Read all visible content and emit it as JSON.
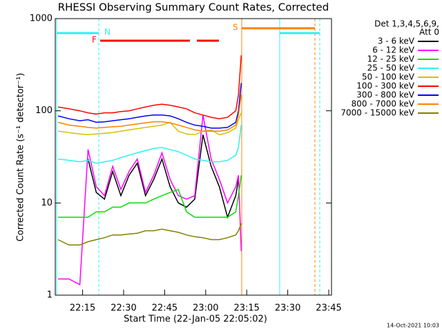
{
  "chart_data": {
    "type": "line",
    "title": "RHESSI Observing Summary Count Rates, Corrected",
    "x_label": "Start Time (22-Jan-05 22:05:02)",
    "y_label": "Corrected Count Rate (s⁻¹ detector⁻¹)",
    "legend_title": [
      "Det 1,3,4,5,6,9,",
      "Att 0"
    ],
    "annotations": [
      "N",
      "F",
      "S"
    ],
    "footer": "14-Oct-2021 10:03",
    "log_y": true,
    "ylim": [
      1,
      1000
    ],
    "yticks": [
      1,
      10,
      100,
      1000
    ],
    "xlim": [
      "22:05",
      "23:46"
    ],
    "xticks": [
      "22:15",
      "22:30",
      "22:45",
      "23:00",
      "23:15",
      "23:30",
      "23:45"
    ],
    "x": [
      "22:06",
      "22:10",
      "22:14",
      "22:17",
      "22:20",
      "22:23",
      "22:26",
      "22:29",
      "22:32",
      "22:35",
      "22:38",
      "22:41",
      "22:44",
      "22:47",
      "22:50",
      "22:53",
      "22:56",
      "22:59",
      "23:02",
      "23:05",
      "23:08",
      "23:11",
      "23:12",
      "23:13"
    ],
    "series": [
      {
        "name": "3 - 6 keV",
        "color": "#000000",
        "values": [
          null,
          null,
          null,
          30,
          13,
          11,
          22,
          12,
          20,
          27,
          12,
          18,
          30,
          15,
          10,
          9,
          11,
          55,
          25,
          15,
          7,
          12,
          18,
          null
        ]
      },
      {
        "name": "6 - 12 keV",
        "color": "#ff00ff",
        "values": [
          1.5,
          1.5,
          1.3,
          38,
          15,
          12,
          25,
          14,
          22,
          30,
          13,
          20,
          35,
          18,
          12,
          11,
          12,
          90,
          30,
          18,
          10,
          15,
          20,
          3
        ]
      },
      {
        "name": "12 - 25 keV",
        "color": "#00e000",
        "values": [
          7,
          7,
          7,
          7,
          8,
          8,
          9,
          9,
          10,
          10,
          10,
          11,
          12,
          13,
          14,
          8,
          7,
          7,
          7,
          7,
          7,
          8,
          12,
          20
        ]
      },
      {
        "name": "25 - 50 keV",
        "color": "#30f0f0",
        "values": [
          30,
          29,
          28,
          29,
          27,
          28,
          29,
          31,
          33,
          35,
          37,
          39,
          40,
          38,
          36,
          33,
          30,
          29,
          28,
          28,
          29,
          33,
          40,
          70
        ]
      },
      {
        "name": "50 - 100 keV",
        "color": "#d4c000",
        "values": [
          60,
          58,
          56,
          55,
          56,
          57,
          58,
          60,
          62,
          64,
          66,
          68,
          70,
          75,
          60,
          56,
          55,
          60,
          62,
          55,
          58,
          65,
          80,
          95
        ]
      },
      {
        "name": "100 - 300 keV",
        "color": "#ff0000",
        "values": [
          110,
          105,
          100,
          95,
          92,
          95,
          95,
          98,
          100,
          105,
          110,
          115,
          118,
          115,
          110,
          105,
          95,
          90,
          85,
          82,
          85,
          100,
          150,
          400
        ]
      },
      {
        "name": "300 - 800 keV",
        "color": "#0000ff",
        "values": [
          88,
          82,
          78,
          80,
          75,
          76,
          78,
          80,
          82,
          85,
          88,
          90,
          90,
          88,
          82,
          75,
          70,
          68,
          65,
          65,
          66,
          75,
          100,
          200
        ]
      },
      {
        "name": "800 - 7000 keV",
        "color": "#ff8000",
        "values": [
          75,
          70,
          68,
          66,
          65,
          66,
          67,
          68,
          70,
          72,
          74,
          76,
          76,
          74,
          70,
          66,
          62,
          60,
          60,
          60,
          62,
          70,
          90,
          150
        ]
      },
      {
        "name": "7000 - 15000 keV",
        "color": "#808000",
        "values": [
          4,
          3.5,
          3.5,
          3.8,
          4,
          4.2,
          4.5,
          4.5,
          4.6,
          4.7,
          5,
          5,
          5.2,
          5,
          4.8,
          4.5,
          4.3,
          4.2,
          4,
          4,
          4.2,
          4.5,
          5,
          6
        ]
      }
    ]
  }
}
